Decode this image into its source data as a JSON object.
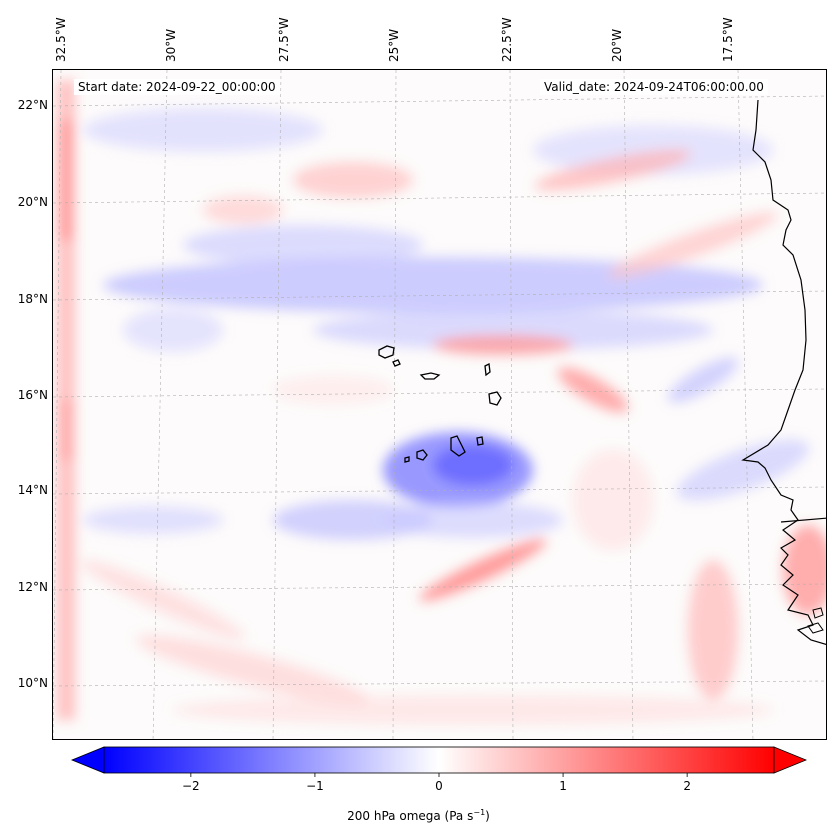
{
  "map": {
    "start_date": "Start date: 2024-09-22_00:00:00",
    "valid_date": "Valid_date: 2024-09-24T06:00:00.00",
    "lon_labels": [
      "32.5°W",
      "30°W",
      "27.5°W",
      "25°W",
      "22.5°W",
      "20°W",
      "17.5°W"
    ],
    "lat_labels": [
      "22°N",
      "20°N",
      "18°N",
      "16°N",
      "14°N",
      "12°N",
      "10°N"
    ],
    "variable": "200 hPa omega",
    "units": "Pa s",
    "units_exponent": "−1"
  },
  "colorbar": {
    "ticks": [
      "−2",
      "−1",
      "0",
      "1",
      "2"
    ],
    "tick_values": [
      -2,
      -1,
      0,
      1,
      2
    ],
    "range": [
      -2.7,
      2.7
    ],
    "low_color": "#0000ff",
    "mid_color": "#ffffff",
    "high_color": "#ff0000"
  },
  "colors": {
    "land_outline": "#000000",
    "grid": "#b0b0b0"
  }
}
